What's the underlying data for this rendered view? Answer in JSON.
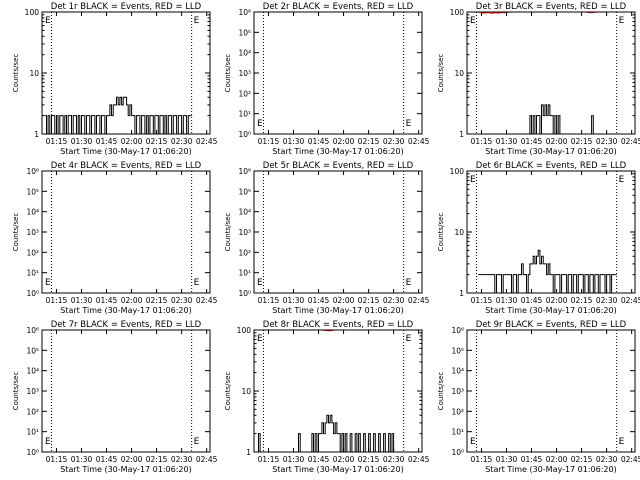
{
  "colors": {
    "events": "#000000",
    "lld": "#ff0000",
    "background": "#ffffff"
  },
  "x_tick_labels": [
    "01:15",
    "01:30",
    "01:45",
    "02:00",
    "02:15",
    "02:30",
    "02:45"
  ],
  "x_tick_minutes": [
    75,
    90,
    105,
    120,
    135,
    150,
    165
  ],
  "xlim_minutes": [
    66.33,
    167
  ],
  "vlines_minutes": [
    72,
    156
  ],
  "chart_data": [
    {
      "type": "line",
      "title": "Det 1r BLACK = Events, RED = LLD",
      "xlabel": "Start Time (30-May-17 01:06:20)",
      "ylabel": "Counts/sec",
      "yscale": "log",
      "ylim": [
        1,
        100
      ],
      "y_tick_labels": [
        "1",
        "10",
        "100"
      ],
      "y_tick_values": [
        1,
        10,
        100
      ],
      "grid": false,
      "marker_label": "E",
      "series": [
        {
          "role": "events",
          "x_minutes": [
            68,
            69,
            70,
            71,
            72,
            73,
            74,
            75,
            76,
            77,
            78,
            79,
            80,
            81,
            82,
            83,
            84,
            85,
            86,
            87,
            88,
            89,
            90,
            91,
            92,
            93,
            94,
            95,
            96,
            97,
            98,
            99,
            100,
            101,
            102,
            103,
            104,
            105,
            106,
            107,
            108,
            109,
            110,
            111,
            112,
            113,
            114,
            115,
            116,
            117,
            118,
            119,
            120,
            121,
            122,
            123,
            124,
            125,
            126,
            127,
            128,
            129,
            130,
            131,
            132,
            133,
            134,
            135,
            136,
            137,
            138,
            139,
            140,
            141,
            142,
            143,
            144,
            145,
            146,
            147,
            148,
            149,
            150,
            151,
            152,
            153,
            154,
            155
          ],
          "values": [
            2,
            1,
            2,
            1,
            2,
            2,
            1,
            2,
            1,
            2,
            2,
            1,
            2,
            1,
            2,
            2,
            1,
            2,
            2,
            1,
            2,
            1,
            2,
            2,
            1,
            2,
            2,
            1,
            2,
            2,
            1,
            2,
            2,
            1,
            2,
            2,
            1,
            2,
            2,
            3,
            2,
            3,
            3,
            4,
            3,
            4,
            3,
            4,
            4,
            3,
            2,
            3,
            2,
            2,
            1,
            2,
            2,
            1,
            2,
            2,
            1,
            2,
            1,
            2,
            2,
            1,
            2,
            2,
            1,
            2,
            2,
            1,
            2,
            1,
            2,
            2,
            1,
            2,
            2,
            1,
            2,
            2,
            1,
            2,
            2,
            1,
            2,
            2
          ]
        },
        {
          "role": "lld",
          "x_minutes": [],
          "values": []
        }
      ]
    },
    {
      "type": "line",
      "title": "Det 2r BLACK = Events, RED = LLD",
      "xlabel": "Start Time (30-May-17 01:06:20)",
      "ylabel": "Counts/sec",
      "yscale": "log",
      "ylim": [
        1,
        1000000
      ],
      "y_tick_labels": [
        "10⁰",
        "10¹",
        "10²",
        "10³",
        "10⁴",
        "10⁵",
        "10⁶"
      ],
      "y_tick_values": [
        1,
        10,
        100,
        1000,
        10000,
        100000,
        1000000
      ],
      "grid": false,
      "marker_label": "E",
      "series": [
        {
          "role": "events",
          "x_minutes": [],
          "values": []
        },
        {
          "role": "lld",
          "x_minutes": [],
          "values": []
        }
      ]
    },
    {
      "type": "line",
      "title": "Det 3r BLACK = Events, RED = LLD",
      "xlabel": "Start Time (30-May-17 01:06:20)",
      "ylabel": "Counts/sec",
      "yscale": "log",
      "ylim": [
        1,
        100
      ],
      "y_tick_labels": [
        "1",
        "10",
        "100"
      ],
      "y_tick_values": [
        1,
        10,
        100
      ],
      "grid": false,
      "marker_label": "E",
      "series": [
        {
          "role": "events",
          "x_minutes": [
            103,
            104,
            105,
            106,
            107,
            108,
            109,
            110,
            111,
            112,
            113,
            114,
            115,
            116,
            117,
            118,
            119,
            120,
            121,
            122,
            123,
            124,
            125,
            126,
            127,
            128,
            129,
            130,
            131,
            132,
            133,
            134,
            135,
            136,
            137,
            138,
            139,
            140,
            141,
            142,
            143,
            144,
            145,
            146,
            147,
            148,
            149,
            150,
            151,
            152,
            153,
            154,
            155
          ],
          "values": [
            1,
            2,
            1,
            2,
            1,
            2,
            2,
            1,
            3,
            2,
            3,
            2,
            3,
            2,
            2,
            1,
            2,
            1,
            2,
            1,
            1,
            1,
            1,
            1,
            1,
            1,
            1,
            1,
            1,
            1,
            1,
            1,
            1,
            1,
            1,
            1,
            1,
            1,
            2,
            1,
            1,
            1,
            1,
            1,
            1,
            1,
            1,
            1,
            1,
            1,
            1,
            1,
            1
          ]
        },
        {
          "role": "lld",
          "x_minutes": [
            73,
            75,
            77,
            79,
            81,
            83,
            85,
            87,
            89,
            91,
            93,
            95,
            137,
            139,
            141,
            143,
            145
          ],
          "values": [
            100,
            97,
            96,
            98,
            95,
            97,
            96,
            98,
            97,
            99,
            100,
            100,
            100,
            98,
            97,
            99,
            100
          ]
        }
      ]
    },
    {
      "type": "line",
      "title": "Det 4r BLACK = Events, RED = LLD",
      "xlabel": "Start Time (30-May-17 01:06:20)",
      "ylabel": "Counts/sec",
      "yscale": "log",
      "ylim": [
        1,
        1000000
      ],
      "y_tick_labels": [
        "10⁰",
        "10¹",
        "10²",
        "10³",
        "10⁴",
        "10⁵",
        "10⁶"
      ],
      "y_tick_values": [
        1,
        10,
        100,
        1000,
        10000,
        100000,
        1000000
      ],
      "grid": false,
      "marker_label": "E",
      "series": [
        {
          "role": "events",
          "x_minutes": [],
          "values": []
        },
        {
          "role": "lld",
          "x_minutes": [],
          "values": []
        }
      ]
    },
    {
      "type": "line",
      "title": "Det 5r BLACK = Events, RED = LLD",
      "xlabel": "Start Time (30-May-17 01:06:20)",
      "ylabel": "Counts/sec",
      "yscale": "log",
      "ylim": [
        1,
        1000000
      ],
      "y_tick_labels": [
        "10⁰",
        "10¹",
        "10²",
        "10³",
        "10⁴",
        "10⁵",
        "10⁶"
      ],
      "y_tick_values": [
        1,
        10,
        100,
        1000,
        10000,
        100000,
        1000000
      ],
      "grid": false,
      "marker_label": "E",
      "series": [
        {
          "role": "events",
          "x_minutes": [],
          "values": []
        },
        {
          "role": "lld",
          "x_minutes": [],
          "values": []
        }
      ]
    },
    {
      "type": "line",
      "title": "Det 6r BLACK = Events, RED = LLD",
      "xlabel": "Start Time (30-May-17 01:06:20)",
      "ylabel": "Counts/sec",
      "yscale": "log",
      "ylim": [
        1,
        100
      ],
      "y_tick_labels": [
        "1",
        "10",
        "100"
      ],
      "y_tick_values": [
        1,
        10,
        100
      ],
      "grid": false,
      "marker_label": "E",
      "series": [
        {
          "role": "events",
          "x_minutes": [
            73,
            74,
            75,
            76,
            77,
            78,
            79,
            80,
            81,
            82,
            83,
            84,
            85,
            86,
            87,
            88,
            89,
            90,
            91,
            92,
            93,
            94,
            95,
            96,
            97,
            98,
            99,
            100,
            101,
            102,
            103,
            104,
            105,
            106,
            107,
            108,
            109,
            110,
            111,
            112,
            113,
            114,
            115,
            116,
            117,
            118,
            119,
            120,
            121,
            122,
            123,
            124,
            125,
            126,
            127,
            128,
            129,
            130,
            131,
            132,
            133,
            134,
            135,
            136,
            137,
            138,
            139,
            140,
            141,
            142,
            143,
            144,
            145,
            146,
            147,
            148,
            149,
            150,
            151,
            152,
            153,
            154,
            155
          ],
          "values": [
            2,
            2,
            2,
            2,
            2,
            2,
            2,
            2,
            2,
            2,
            1,
            2,
            2,
            2,
            1,
            2,
            2,
            2,
            2,
            2,
            1,
            2,
            2,
            1,
            2,
            2,
            3,
            2,
            2,
            1,
            2,
            3,
            3,
            4,
            3,
            4,
            5,
            3,
            4,
            3,
            3,
            2,
            3,
            2,
            2,
            1,
            2,
            2,
            2,
            1,
            2,
            2,
            2,
            1,
            2,
            2,
            1,
            2,
            2,
            1,
            2,
            2,
            2,
            1,
            2,
            2,
            1,
            2,
            2,
            1,
            2,
            2,
            1,
            2,
            2,
            2,
            1,
            2,
            2,
            1,
            2,
            2,
            2
          ]
        },
        {
          "role": "lld",
          "x_minutes": [],
          "values": []
        }
      ]
    },
    {
      "type": "line",
      "title": "Det 7r BLACK = Events, RED = LLD",
      "xlabel": "Start Time (30-May-17 01:06:20)",
      "ylabel": "Counts/sec",
      "yscale": "log",
      "ylim": [
        1,
        1000000
      ],
      "y_tick_labels": [
        "10⁰",
        "10¹",
        "10²",
        "10³",
        "10⁴",
        "10⁵",
        "10⁶"
      ],
      "y_tick_values": [
        1,
        10,
        100,
        1000,
        10000,
        100000,
        1000000
      ],
      "grid": false,
      "marker_label": "E",
      "series": [
        {
          "role": "events",
          "x_minutes": [],
          "values": []
        },
        {
          "role": "lld",
          "x_minutes": [],
          "values": []
        }
      ]
    },
    {
      "type": "line",
      "title": "Det 8r BLACK = Events, RED = LLD",
      "xlabel": "Start Time (30-May-17 01:06:20)",
      "ylabel": "Counts/sec",
      "yscale": "log",
      "ylim": [
        1,
        100
      ],
      "y_tick_labels": [
        "1",
        "10",
        "100"
      ],
      "y_tick_values": [
        1,
        10,
        100
      ],
      "grid": false,
      "marker_label": "E",
      "series": [
        {
          "role": "events",
          "x_minutes": [
            68,
            69,
            70,
            92,
            93,
            94,
            95,
            100,
            101,
            102,
            103,
            104,
            105,
            106,
            107,
            108,
            109,
            110,
            111,
            112,
            113,
            114,
            115,
            116,
            117,
            118,
            119,
            120,
            121,
            122,
            123,
            124,
            125,
            126,
            127,
            128,
            129,
            130,
            131,
            132,
            133,
            134,
            135,
            136,
            137,
            138,
            139,
            140,
            141,
            142,
            143,
            144,
            145,
            146,
            147,
            148,
            149,
            150
          ],
          "values": [
            1,
            2,
            1,
            1,
            2,
            1,
            1,
            1,
            2,
            1,
            2,
            1,
            2,
            2,
            3,
            2,
            3,
            4,
            3,
            4,
            3,
            2,
            3,
            2,
            2,
            1,
            2,
            1,
            2,
            1,
            1,
            2,
            1,
            1,
            2,
            1,
            2,
            1,
            1,
            2,
            1,
            1,
            2,
            1,
            1,
            2,
            1,
            1,
            2,
            1,
            1,
            2,
            1,
            1,
            2,
            1,
            2,
            1
          ]
        },
        {
          "role": "lld",
          "x_minutes": [
            107,
            109,
            111,
            113,
            115
          ],
          "values": [
            100,
            98,
            97,
            98,
            100
          ]
        }
      ]
    },
    {
      "type": "line",
      "title": "Det 9r BLACK = Events, RED = LLD",
      "xlabel": "Start Time (30-May-17 01:06:20)",
      "ylabel": "Counts/sec",
      "yscale": "log",
      "ylim": [
        1,
        1000000
      ],
      "y_tick_labels": [
        "10⁰",
        "10¹",
        "10²",
        "10³",
        "10⁴",
        "10⁵",
        "10⁶"
      ],
      "y_tick_values": [
        1,
        10,
        100,
        1000,
        10000,
        100000,
        1000000
      ],
      "grid": false,
      "marker_label": "E",
      "series": [
        {
          "role": "events",
          "x_minutes": [],
          "values": []
        },
        {
          "role": "lld",
          "x_minutes": [],
          "values": []
        }
      ]
    }
  ]
}
